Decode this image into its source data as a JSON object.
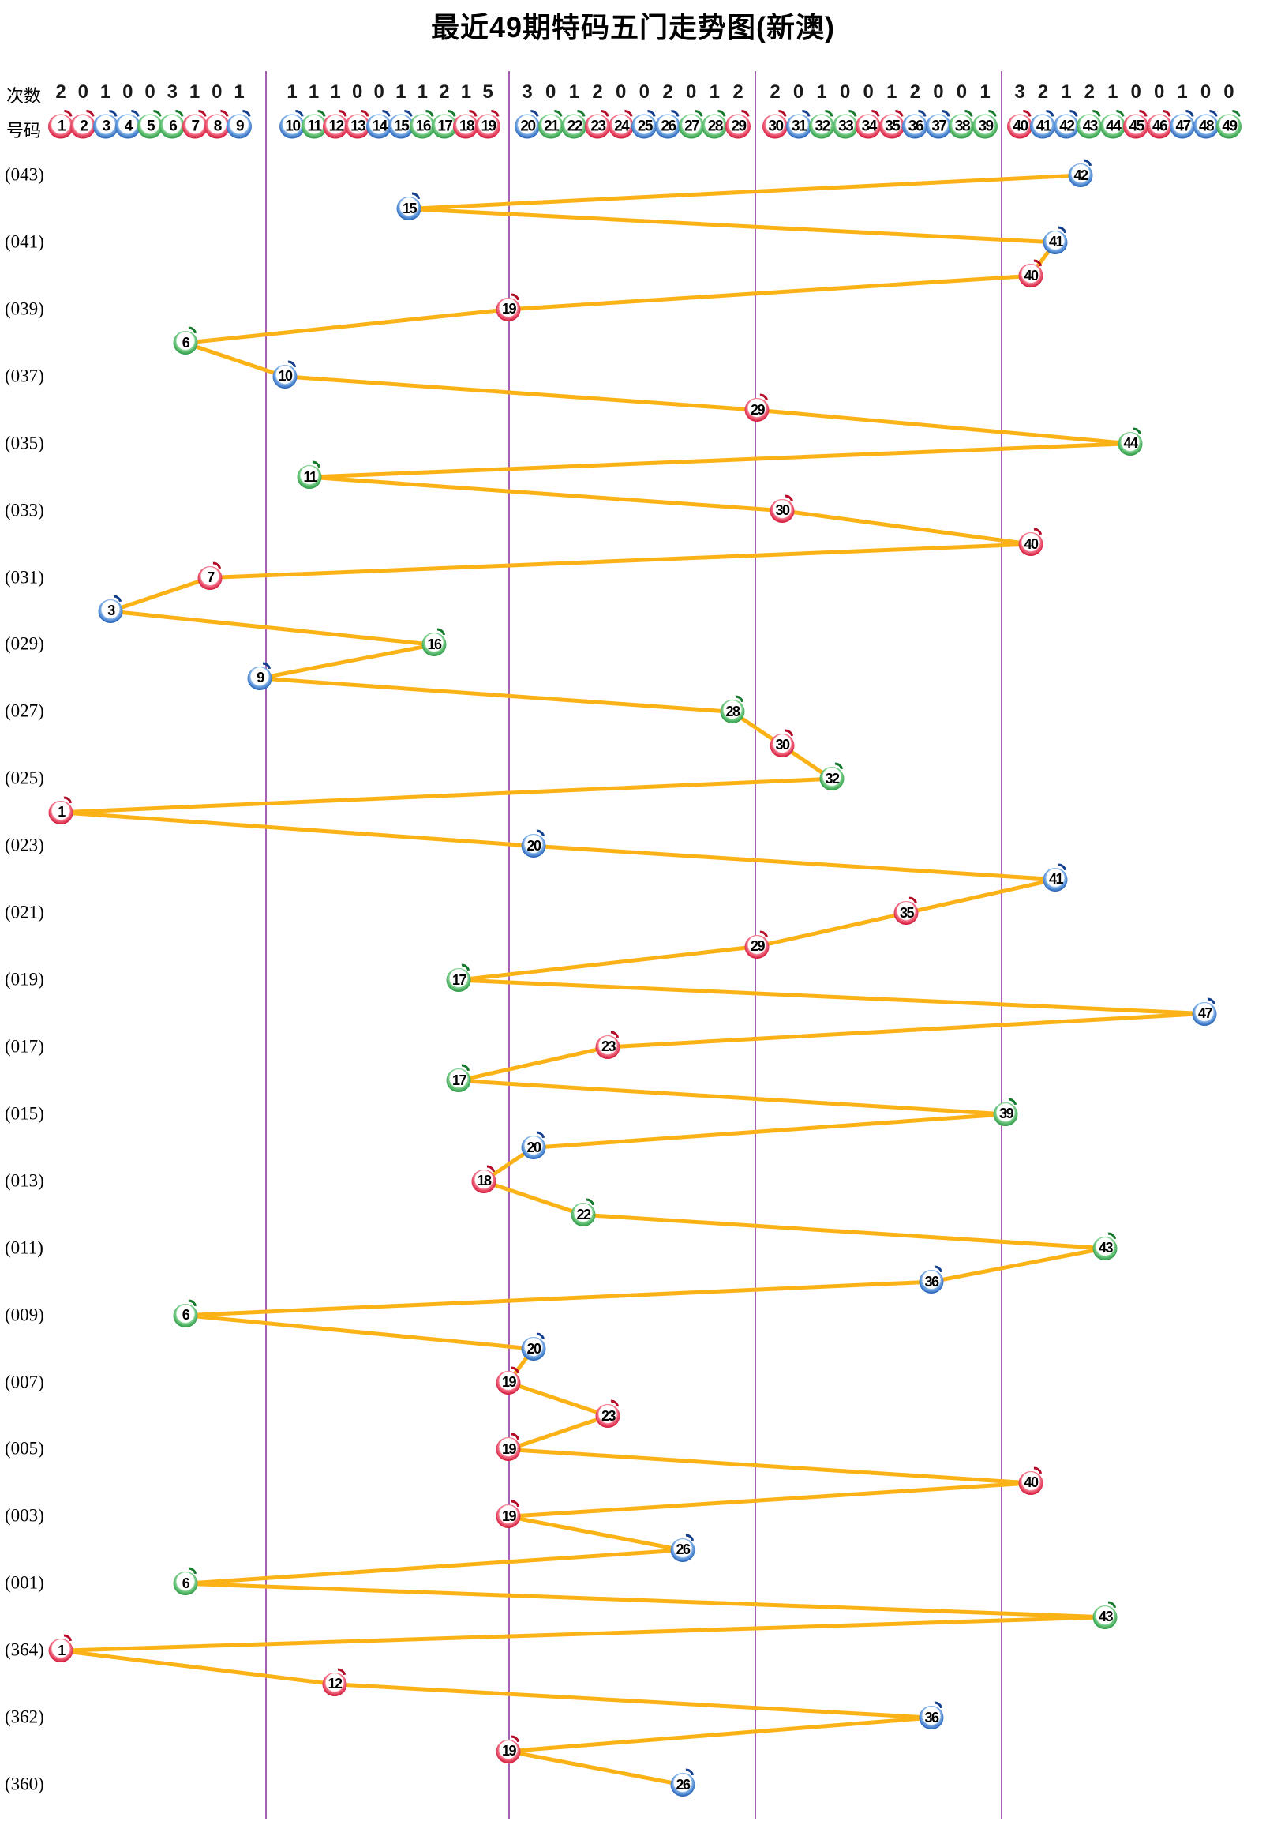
{
  "title": "最近49期特码五门走势图(新澳)",
  "header": {
    "counts_label": "次数",
    "numbers_label": "号码",
    "counts": [
      2,
      0,
      1,
      0,
      0,
      3,
      1,
      0,
      1,
      1,
      1,
      1,
      0,
      0,
      1,
      1,
      2,
      1,
      5,
      3,
      0,
      1,
      2,
      0,
      0,
      2,
      0,
      1,
      2,
      2,
      0,
      1,
      0,
      0,
      1,
      2,
      0,
      0,
      1,
      3,
      2,
      1,
      2,
      1,
      0,
      0,
      1,
      0,
      0
    ],
    "numbers": [
      1,
      2,
      3,
      4,
      5,
      6,
      7,
      8,
      9,
      10,
      11,
      12,
      13,
      14,
      15,
      16,
      17,
      18,
      19,
      20,
      21,
      22,
      23,
      24,
      25,
      26,
      27,
      28,
      29,
      30,
      31,
      32,
      33,
      34,
      35,
      36,
      37,
      38,
      39,
      40,
      41,
      42,
      43,
      44,
      45,
      46,
      47,
      48,
      49
    ]
  },
  "colors": {
    "red_ball": "#d31638",
    "blue_ball": "#2361b8",
    "green_ball": "#2a9a43",
    "trend_line": "#fbb216",
    "divider": "#8a2d9b",
    "red_numbers": [
      1,
      2,
      7,
      8,
      12,
      13,
      18,
      19,
      23,
      24,
      29,
      30,
      34,
      35,
      40,
      45,
      46
    ],
    "blue_numbers": [
      3,
      4,
      9,
      10,
      14,
      15,
      20,
      25,
      26,
      31,
      36,
      37,
      41,
      42,
      47,
      48
    ],
    "green_numbers": [
      5,
      6,
      11,
      16,
      17,
      21,
      22,
      27,
      28,
      32,
      33,
      38,
      39,
      43,
      44,
      49
    ]
  },
  "chart_data": {
    "type": "line",
    "title": "最近49期特码五门走势图(新澳)",
    "xlabel": "号码",
    "x_range": [
      1,
      49
    ],
    "sections": [
      [
        1,
        9
      ],
      [
        10,
        19
      ],
      [
        20,
        29
      ],
      [
        30,
        39
      ],
      [
        40,
        49
      ]
    ],
    "counts_per_number": [
      2,
      0,
      1,
      0,
      0,
      3,
      1,
      0,
      1,
      1,
      1,
      1,
      0,
      0,
      1,
      1,
      2,
      1,
      5,
      3,
      0,
      1,
      2,
      0,
      0,
      2,
      0,
      1,
      2,
      2,
      0,
      1,
      0,
      0,
      1,
      2,
      0,
      0,
      1,
      3,
      2,
      1,
      2,
      1,
      0,
      0,
      1,
      0,
      0
    ],
    "rows": [
      {
        "label": "(043)",
        "ball": 42
      },
      {
        "label": "",
        "ball": 15
      },
      {
        "label": "(041)",
        "ball": 41
      },
      {
        "label": "",
        "ball": 40
      },
      {
        "label": "(039)",
        "ball": 19
      },
      {
        "label": "",
        "ball": 6
      },
      {
        "label": "(037)",
        "ball": 10
      },
      {
        "label": "",
        "ball": 29
      },
      {
        "label": "(035)",
        "ball": 44
      },
      {
        "label": "",
        "ball": 11
      },
      {
        "label": "(033)",
        "ball": 30
      },
      {
        "label": "",
        "ball": 40
      },
      {
        "label": "(031)",
        "ball": 7
      },
      {
        "label": "",
        "ball": 3
      },
      {
        "label": "(029)",
        "ball": 16
      },
      {
        "label": "",
        "ball": 9
      },
      {
        "label": "(027)",
        "ball": 28
      },
      {
        "label": "",
        "ball": 30
      },
      {
        "label": "(025)",
        "ball": 32
      },
      {
        "label": "",
        "ball": 1
      },
      {
        "label": "(023)",
        "ball": 20
      },
      {
        "label": "",
        "ball": 41
      },
      {
        "label": "(021)",
        "ball": 35
      },
      {
        "label": "",
        "ball": 29
      },
      {
        "label": "(019)",
        "ball": 17
      },
      {
        "label": "",
        "ball": 47
      },
      {
        "label": "(017)",
        "ball": 23
      },
      {
        "label": "",
        "ball": 17
      },
      {
        "label": "(015)",
        "ball": 39
      },
      {
        "label": "",
        "ball": 20
      },
      {
        "label": "(013)",
        "ball": 18
      },
      {
        "label": "",
        "ball": 22
      },
      {
        "label": "(011)",
        "ball": 43
      },
      {
        "label": "",
        "ball": 36
      },
      {
        "label": "(009)",
        "ball": 6
      },
      {
        "label": "",
        "ball": 20
      },
      {
        "label": "(007)",
        "ball": 19
      },
      {
        "label": "",
        "ball": 23
      },
      {
        "label": "(005)",
        "ball": 19
      },
      {
        "label": "",
        "ball": 40
      },
      {
        "label": "(003)",
        "ball": 19
      },
      {
        "label": "",
        "ball": 26
      },
      {
        "label": "(001)",
        "ball": 6
      },
      {
        "label": "",
        "ball": 43
      },
      {
        "label": "(364)",
        "ball": 1
      },
      {
        "label": "",
        "ball": 12
      },
      {
        "label": "(362)",
        "ball": 36
      },
      {
        "label": "",
        "ball": 19
      },
      {
        "label": "(360)",
        "ball": 26
      }
    ]
  }
}
